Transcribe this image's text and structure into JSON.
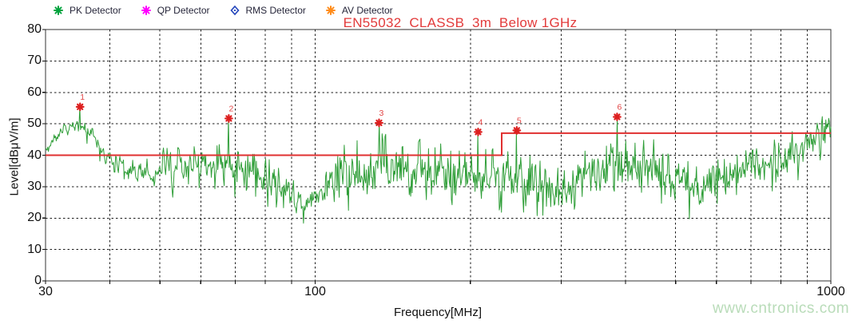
{
  "title": {
    "text": "EN55032_CLASSB_3m_Below 1GHz",
    "color": "#e23b3b"
  },
  "legend": {
    "items": [
      {
        "label": "PK Detector",
        "symbol": "asterisk",
        "color": "#00a33e"
      },
      {
        "label": "QP Detector",
        "symbol": "asterisk",
        "color": "#ff00ff"
      },
      {
        "label": "RMS Detector",
        "symbol": "diamond",
        "color": "#2244bb"
      },
      {
        "label": "AV Detector",
        "symbol": "asterisk",
        "color": "#ff8c1a"
      }
    ]
  },
  "axes": {
    "x_label": "Frequency[MHz]",
    "y_label": "Level[dBμV/m]",
    "x_ticks": [
      30,
      100,
      1000
    ],
    "y_ticks": [
      0,
      10,
      20,
      30,
      40,
      50,
      60,
      70,
      80
    ],
    "x_grid": [
      40,
      50,
      60,
      70,
      80,
      90,
      100,
      200,
      300,
      400,
      500,
      600,
      700,
      800,
      900
    ],
    "y_grid": [
      10,
      20,
      30,
      40,
      50,
      60,
      70
    ]
  },
  "watermark": {
    "text": "www.cntronics.com",
    "color": "#b9dcb9"
  },
  "chart_data": {
    "type": "line",
    "title": "EN55032_CLASSB_3m_Below 1GHz",
    "xlabel": "Frequency[MHz]",
    "ylabel": "Level[dBμV/m]",
    "xlim": [
      30,
      1000
    ],
    "ylim": [
      0,
      80
    ],
    "x_scale": "log",
    "grid": true,
    "legend_position": "top",
    "series": [
      {
        "name": "PK Detector",
        "color": "#2f9e38",
        "style": "noisy-spectrum",
        "points": 1100,
        "seed": 55032,
        "envelope_keypoints": [
          [
            30,
            38,
            46
          ],
          [
            33,
            46,
            56
          ],
          [
            36,
            44,
            55
          ],
          [
            39,
            34,
            46
          ],
          [
            43,
            30,
            41
          ],
          [
            48,
            27,
            42
          ],
          [
            55,
            26,
            44
          ],
          [
            62,
            27,
            46
          ],
          [
            66,
            28,
            45
          ],
          [
            70,
            27,
            44
          ],
          [
            78,
            25,
            42
          ],
          [
            85,
            23,
            40
          ],
          [
            92,
            19,
            33
          ],
          [
            98,
            20,
            31
          ],
          [
            105,
            22,
            40
          ],
          [
            115,
            24,
            44
          ],
          [
            125,
            25,
            46
          ],
          [
            133,
            26,
            48
          ],
          [
            142,
            24,
            45
          ],
          [
            155,
            23,
            44
          ],
          [
            170,
            24,
            44
          ],
          [
            185,
            24,
            42
          ],
          [
            200,
            25,
            43
          ],
          [
            215,
            24,
            42
          ],
          [
            232,
            25,
            42
          ],
          [
            250,
            24,
            41
          ],
          [
            270,
            23,
            40
          ],
          [
            290,
            21,
            38
          ],
          [
            310,
            20,
            38
          ],
          [
            330,
            24,
            41
          ],
          [
            355,
            26,
            43
          ],
          [
            385,
            28,
            45
          ],
          [
            415,
            28,
            44
          ],
          [
            450,
            28,
            45
          ],
          [
            480,
            25,
            41
          ],
          [
            510,
            24,
            39
          ],
          [
            545,
            21,
            37
          ],
          [
            580,
            23,
            38
          ],
          [
            620,
            26,
            41
          ],
          [
            660,
            28,
            43
          ],
          [
            700,
            29,
            44
          ],
          [
            745,
            30,
            44
          ],
          [
            790,
            32,
            46
          ],
          [
            840,
            34,
            47
          ],
          [
            890,
            36,
            50
          ],
          [
            940,
            39,
            53
          ],
          [
            1000,
            41,
            56
          ]
        ]
      }
    ],
    "limit_line": {
      "name": "EN55032 Class B 3m limit",
      "color": "#e03030",
      "segments": [
        [
          30,
          40
        ],
        [
          230,
          40
        ],
        [
          230,
          47
        ],
        [
          1000,
          47
        ]
      ]
    },
    "markers": {
      "color": "#dd1f1f",
      "label_color": "#e24444",
      "points": [
        {
          "label": "1",
          "freq_mhz": 35,
          "level_dbuvm": 55.4,
          "sharp": false
        },
        {
          "label": "2",
          "freq_mhz": 68,
          "level_dbuvm": 51.7,
          "sharp": true
        },
        {
          "label": "3",
          "freq_mhz": 133,
          "level_dbuvm": 50.3,
          "sharp": true
        },
        {
          "label": "4",
          "freq_mhz": 207,
          "level_dbuvm": 47.4,
          "sharp": true
        },
        {
          "label": "5",
          "freq_mhz": 246,
          "level_dbuvm": 47.9,
          "sharp": true
        },
        {
          "label": "6",
          "freq_mhz": 385,
          "level_dbuvm": 52.2,
          "sharp": true
        }
      ]
    }
  }
}
